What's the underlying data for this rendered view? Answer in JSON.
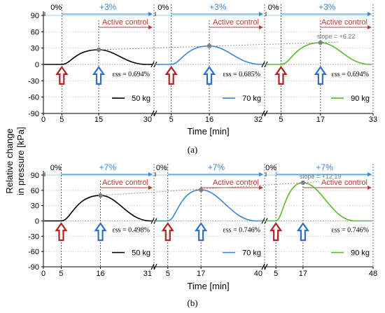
{
  "shared": {
    "ylabel_line1": "Relative change",
    "ylabel_line2": "in pressure [kPa]",
    "xlabel": "Time [min]",
    "baseline_label": "0%",
    "active_control_label": "Active control",
    "colors": {
      "black_series": "#000000",
      "blue_series": "#3a86d8",
      "green_series": "#5cb82d",
      "phase_arrow": "#3a86d8",
      "active_arrow": "#c0392b",
      "up_arrow_red": "#b22222",
      "up_arrow_blue": "#2f6fc8",
      "slope_marker": "#808080",
      "gridline_cyan": "#9ad7cf"
    }
  },
  "chart_data": [
    {
      "type": "line",
      "caption": "(a)",
      "phase_label": "+3%",
      "ylim": [
        -90,
        90
      ],
      "yticks": [
        "90",
        "60",
        "30",
        "0",
        "-30",
        "-60",
        "-90"
      ],
      "slope_label": "slope = +6.22",
      "panels": [
        {
          "xlim": [
            0,
            30
          ],
          "ticks": [
            "0",
            "5",
            "15",
            "30"
          ],
          "tick_values": [
            0,
            5,
            15,
            30
          ],
          "legend": "50 kg",
          "ess": "εss = 0.694%",
          "start": 5,
          "peak_x": 15,
          "peak_y": 27,
          "end": 28,
          "color_key": "black_series"
        },
        {
          "xlim": [
            0,
            32
          ],
          "ticks": [
            "5",
            "16",
            "32"
          ],
          "tick_values": [
            5,
            16,
            32
          ],
          "legend": "70 kg",
          "ess": "εss = 0.685%",
          "start": 5,
          "peak_x": 16,
          "peak_y": 34,
          "end": 31,
          "color_key": "blue_series"
        },
        {
          "xlim": [
            0,
            33
          ],
          "ticks": [
            "5",
            "17",
            "33"
          ],
          "tick_values": [
            5,
            17,
            33
          ],
          "legend": "90 kg",
          "ess": "εss = 0.694%",
          "start": 5,
          "peak_x": 17,
          "peak_y": 40,
          "end": 32,
          "color_key": "green_series"
        }
      ]
    },
    {
      "type": "line",
      "caption": "(b)",
      "phase_label": "+7%",
      "ylim": [
        -90,
        90
      ],
      "yticks": [
        "90",
        "60",
        "30",
        "0",
        "-30",
        "-60",
        "-90"
      ],
      "slope_label": "slope = +12.19",
      "panels": [
        {
          "xlim": [
            0,
            31
          ],
          "ticks": [
            "0",
            "5",
            "16",
            "31"
          ],
          "tick_values": [
            0,
            5,
            16,
            31
          ],
          "legend": "50 kg",
          "ess": "εss = 0.498%",
          "start": 5,
          "peak_x": 16,
          "peak_y": 50,
          "end": 30,
          "color_key": "black_series"
        },
        {
          "xlim": [
            0,
            40
          ],
          "ticks": [
            "5",
            "17",
            "40"
          ],
          "tick_values": [
            5,
            17,
            40
          ],
          "legend": "70 kg",
          "ess": "εss = 0.746%",
          "start": 5,
          "peak_x": 17,
          "peak_y": 61,
          "end": 37,
          "color_key": "blue_series"
        },
        {
          "xlim": [
            0,
            48
          ],
          "ticks": [
            "5",
            "17",
            "48"
          ],
          "tick_values": [
            5,
            17,
            48
          ],
          "legend": "90 kg",
          "ess": "εss = 0.746%",
          "start": 5,
          "peak_x": 17,
          "peak_y": 75,
          "end": 40,
          "color_key": "green_series"
        }
      ]
    }
  ]
}
